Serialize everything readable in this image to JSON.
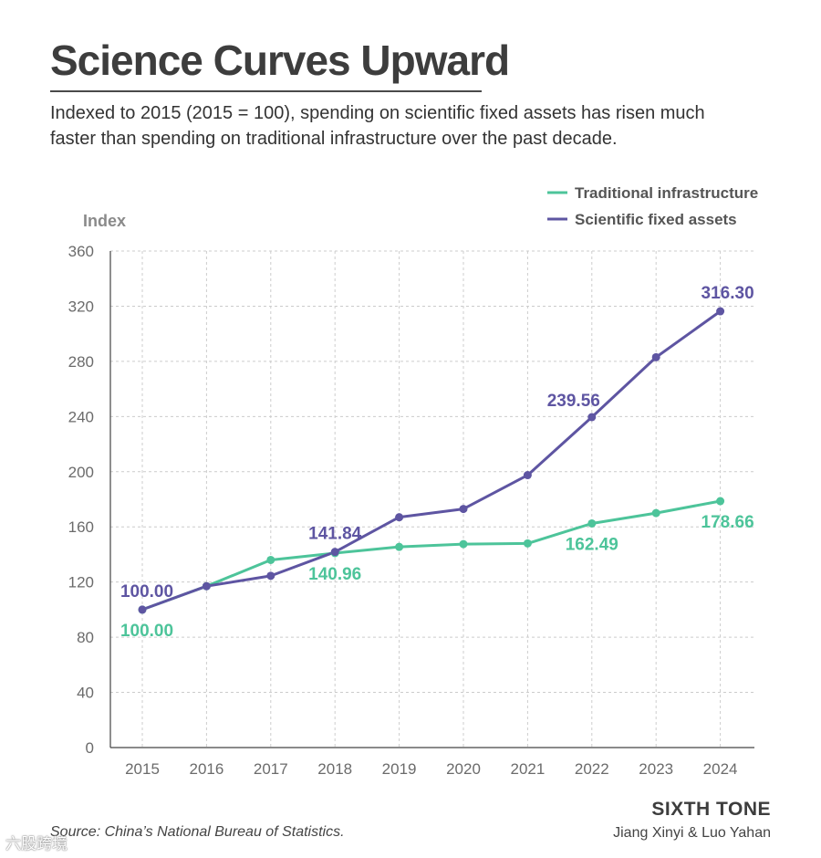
{
  "header": {
    "title": "Science Curves Upward",
    "subtitle": "Indexed to 2015 (2015 = 100), spending on scientific fixed assets has risen much faster than spending on traditional infrastructure over the past decade."
  },
  "footer": {
    "source": "Source: China’s National Bureau of Statistics.",
    "brand": "SIXTH TONE",
    "credit": "Jiang Xinyi & Luo Yahan",
    "watermark": "六股跨境"
  },
  "colors": {
    "traditional": "#4dc49a",
    "scientific": "#5e55a2",
    "axis_text": "#6b6b6b",
    "grid": "#cccccc"
  },
  "chart_data": {
    "type": "line",
    "ylabel": "Index",
    "xlabel": "",
    "ylim": [
      0,
      360
    ],
    "yticks": [
      0,
      40,
      80,
      120,
      160,
      200,
      240,
      280,
      320,
      360
    ],
    "x": [
      "2015",
      "2016",
      "2017",
      "2018",
      "2019",
      "2020",
      "2021",
      "2022",
      "2023",
      "2024"
    ],
    "grid": true,
    "legend_position": "top-right",
    "series": [
      {
        "name": "Traditional infrastructure",
        "color": "#4dc49a",
        "values": [
          100.0,
          117,
          136,
          140.96,
          145.5,
          147.5,
          148,
          162.49,
          170,
          178.66
        ],
        "labels": [
          {
            "index": 0,
            "text": "100.00",
            "position": "below"
          },
          {
            "index": 3,
            "text": "140.96",
            "position": "below"
          },
          {
            "index": 7,
            "text": "162.49",
            "position": "below"
          },
          {
            "index": 9,
            "text": "178.66",
            "position": "below"
          }
        ]
      },
      {
        "name": "Scientific fixed assets",
        "color": "#5e55a2",
        "values": [
          100.0,
          117,
          124.5,
          141.84,
          167,
          173,
          197.5,
          239.56,
          283,
          316.3
        ],
        "labels": [
          {
            "index": 0,
            "text": "100.00",
            "position": "above"
          },
          {
            "index": 3,
            "text": "141.84",
            "position": "above"
          },
          {
            "index": 7,
            "text": "239.56",
            "position": "above-left"
          },
          {
            "index": 9,
            "text": "316.30",
            "position": "above"
          }
        ]
      }
    ]
  }
}
